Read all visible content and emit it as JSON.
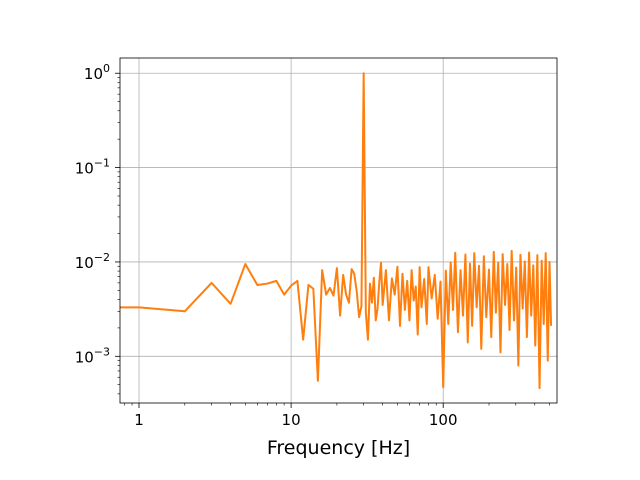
{
  "chart_data": {
    "type": "line",
    "title": "",
    "xlabel": "Frequency [Hz]",
    "ylabel": "",
    "xscale": "log",
    "yscale": "log",
    "xlim": [
      0.75,
      560
    ],
    "ylim": [
      0.00032,
      1.45
    ],
    "grid": true,
    "legend": "none",
    "x_ticks": [
      {
        "value": 1,
        "label": "1"
      },
      {
        "value": 10,
        "label": "10"
      },
      {
        "value": 100,
        "label": "100"
      }
    ],
    "y_ticks": [
      {
        "value": 0.001,
        "base": "10",
        "exp": "−3"
      },
      {
        "value": 0.01,
        "base": "10",
        "exp": "−2"
      },
      {
        "value": 0.1,
        "base": "10",
        "exp": "−1"
      },
      {
        "value": 1,
        "base": "10",
        "exp": "0"
      }
    ],
    "series": [
      {
        "color": "#ff7f0e",
        "x": [
          0.75,
          1,
          2,
          3,
          4,
          5,
          6,
          7,
          8,
          9,
          10,
          11,
          12,
          13,
          14,
          15,
          16,
          17,
          18,
          19,
          20,
          21,
          22,
          23,
          24,
          25,
          26,
          27,
          28,
          29,
          30,
          31,
          32,
          33,
          34,
          35,
          36,
          37,
          38,
          39,
          40,
          42,
          44,
          46,
          48,
          50,
          52,
          54,
          56,
          58,
          60,
          62,
          64,
          66,
          68,
          70,
          72,
          75,
          78,
          80,
          84,
          88,
          92,
          96,
          100,
          104,
          108,
          112,
          116,
          120,
          125,
          130,
          135,
          140,
          145,
          150,
          155,
          160,
          166,
          172,
          178,
          185,
          192,
          200,
          207,
          215,
          222,
          230,
          238,
          246,
          255,
          264,
          273,
          282,
          292,
          302,
          312,
          322,
          333,
          344,
          355,
          367,
          379,
          391,
          403,
          416,
          430,
          444,
          458,
          472,
          487,
          500,
          512
        ],
        "y": [
          0.0033,
          0.0033,
          0.003,
          0.006,
          0.0036,
          0.0095,
          0.0057,
          0.0059,
          0.0063,
          0.0045,
          0.0056,
          0.0063,
          0.0015,
          0.0057,
          0.0052,
          0.00055,
          0.0082,
          0.0045,
          0.0053,
          0.0044,
          0.0086,
          0.0027,
          0.0073,
          0.0045,
          0.0037,
          0.0084,
          0.0075,
          0.0049,
          0.0026,
          0.0034,
          1.0,
          0.0029,
          0.0015,
          0.0059,
          0.0037,
          0.0068,
          0.0024,
          0.0032,
          0.0061,
          0.0098,
          0.0035,
          0.0082,
          0.0024,
          0.0067,
          0.0045,
          0.0089,
          0.0021,
          0.0075,
          0.0031,
          0.0063,
          0.0024,
          0.0082,
          0.0039,
          0.0055,
          0.0017,
          0.0088,
          0.0033,
          0.0066,
          0.0022,
          0.0088,
          0.0041,
          0.0073,
          0.0025,
          0.0062,
          0.00047,
          0.0081,
          0.0022,
          0.0099,
          0.0031,
          0.0125,
          0.0018,
          0.0082,
          0.0027,
          0.012,
          0.0014,
          0.0096,
          0.0021,
          0.0124,
          0.0033,
          0.0091,
          0.0012,
          0.0115,
          0.0026,
          0.0083,
          0.0016,
          0.0128,
          0.0029,
          0.0098,
          0.0011,
          0.0121,
          0.0035,
          0.0095,
          0.0019,
          0.0131,
          0.0024,
          0.0087,
          0.0008,
          0.0119,
          0.0032,
          0.0101,
          0.0016,
          0.0126,
          0.0027,
          0.0092,
          0.0013,
          0.0118,
          0.00046,
          0.0103,
          0.0022,
          0.0124,
          0.0009,
          0.01,
          0.0021
        ]
      }
    ]
  }
}
